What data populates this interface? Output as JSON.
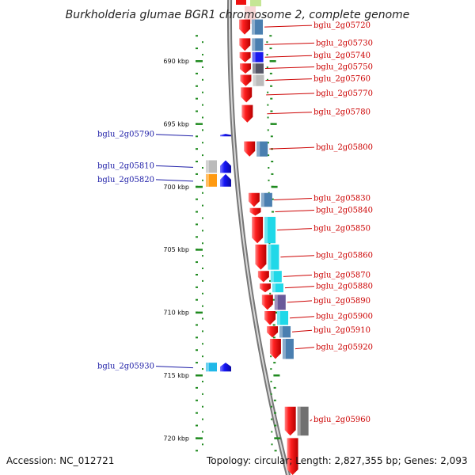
{
  "title": "Burkholderia glumae BGR1 chromosome 2, complete genome",
  "footer": {
    "accession": "Accession: NC_012721",
    "topology": "Topology: circular; Length: 2,827,355 bp; Genes: 2,093"
  },
  "scale": {
    "unit": "kbp",
    "ticks": [
      {
        "kbp": 690,
        "label": "690 kbp"
      },
      {
        "kbp": 695,
        "label": "695 kbp"
      },
      {
        "kbp": 700,
        "label": "700 kbp"
      },
      {
        "kbp": 705,
        "label": "705 kbp"
      },
      {
        "kbp": 710,
        "label": "710 kbp"
      },
      {
        "kbp": 715,
        "label": "715 kbp"
      },
      {
        "kbp": 720,
        "label": "720 kbp"
      }
    ]
  },
  "genes_right": [
    {
      "id": "bglu_2g05720",
      "start": 686.7,
      "end": 687.9,
      "hit": "#4a7fb0"
    },
    {
      "id": "bglu_2g05730",
      "start": 688.2,
      "end": 689.2,
      "hit": "#4a7fb0"
    },
    {
      "id": "bglu_2g05740",
      "start": 689.3,
      "end": 690.1,
      "hit": "#1a1aee"
    },
    {
      "id": "bglu_2g05750",
      "start": 690.2,
      "end": 691.0,
      "hit": "#555566"
    },
    {
      "id": "bglu_2g05760",
      "start": 691.1,
      "end": 692.0,
      "hit": "#bbbbbb"
    },
    {
      "id": "bglu_2g05770",
      "start": 692.1,
      "end": 693.3,
      "hit": null
    },
    {
      "id": "bglu_2g05780",
      "start": 693.5,
      "end": 694.9,
      "hit": null
    },
    {
      "id": "bglu_2g05800",
      "start": 696.4,
      "end": 697.6,
      "hit": "#4a7fb0"
    },
    {
      "id": "bglu_2g05830",
      "start": 700.5,
      "end": 701.6,
      "hit": "#4a7fb0"
    },
    {
      "id": "bglu_2g05840",
      "start": 701.7,
      "end": 702.3,
      "hit": null
    },
    {
      "id": "bglu_2g05850",
      "start": 702.4,
      "end": 704.5,
      "hit": "#20d8e8"
    },
    {
      "id": "bglu_2g05860",
      "start": 704.6,
      "end": 706.6,
      "hit": "#20d8e8"
    },
    {
      "id": "bglu_2g05870",
      "start": 706.7,
      "end": 707.6,
      "hit": "#20d8e8"
    },
    {
      "id": "bglu_2g05880",
      "start": 707.7,
      "end": 708.4,
      "hit": "#20d8e8"
    },
    {
      "id": "bglu_2g05890",
      "start": 708.6,
      "end": 709.8,
      "hit": "#6a5a9a"
    },
    {
      "id": "bglu_2g05900",
      "start": 709.9,
      "end": 711.0,
      "hit": "#20d8e8"
    },
    {
      "id": "bglu_2g05910",
      "start": 711.1,
      "end": 712.0,
      "hit": "#4a7fb0"
    },
    {
      "id": "bglu_2g05920",
      "start": 712.1,
      "end": 713.7,
      "hit": "#4a7fb0"
    },
    {
      "id": "bglu_2g05960",
      "start": 717.5,
      "end": 719.8,
      "hit": "#707070"
    }
  ],
  "genes_left": [
    {
      "id": "bglu_2g05790",
      "start": 695.8,
      "end": 696.0,
      "hit": null
    },
    {
      "id": "bglu_2g05810",
      "start": 697.9,
      "end": 698.9,
      "hit": "#bbbbbb"
    },
    {
      "id": "bglu_2g05820",
      "start": 699.0,
      "end": 700.0,
      "hit": "#ff9a10"
    },
    {
      "id": "bglu_2g05930",
      "start": 714.0,
      "end": 714.7,
      "hit": "#20b8e8"
    }
  ],
  "colors": {
    "forward_gene": "#ee1111",
    "reverse_gene": "#1111ee",
    "tick": "#1f8a1f",
    "backbone": "#9a9a9a",
    "right_label": "#cc0000",
    "left_label": "#1a1aa6"
  }
}
